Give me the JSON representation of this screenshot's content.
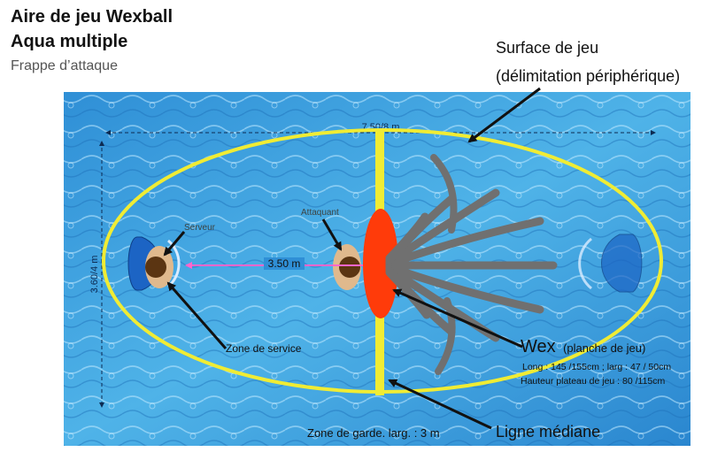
{
  "title": {
    "line1": "Aire de jeu Wexball",
    "line2": "Aqua multiple",
    "subtitle": "Frappe d’attaque"
  },
  "surface_label": {
    "line1": "Surface de jeu",
    "line2": "(délimitation périphérique)"
  },
  "dimensions": {
    "width": "7.50/8 m",
    "height": "3.60/4 m",
    "distance": "3.50 m"
  },
  "players": {
    "server": "Serveur",
    "attacker": "Attaquant"
  },
  "zones": {
    "service": "Zone de service",
    "guard": "Zone de garde. larg. : 3 m"
  },
  "wex": {
    "title": "Wex",
    "title_sub": "(planche de jeu)",
    "spec1": "Long : 145 /155cm ; larg : 47 / 50cm",
    "spec2": "Hauteur plateau de jeu : 80 /115cm"
  },
  "midline_label": "Ligne médiane",
  "colors": {
    "water": "#3fa2de",
    "boundary": "#f0ec34",
    "wex": "#ff3b0a",
    "player_head": "#5b3512",
    "player_body": "#e0b98d",
    "trajectory": "#ff66cc",
    "strike_rays": "#707070",
    "zone": "#1c64c4"
  }
}
